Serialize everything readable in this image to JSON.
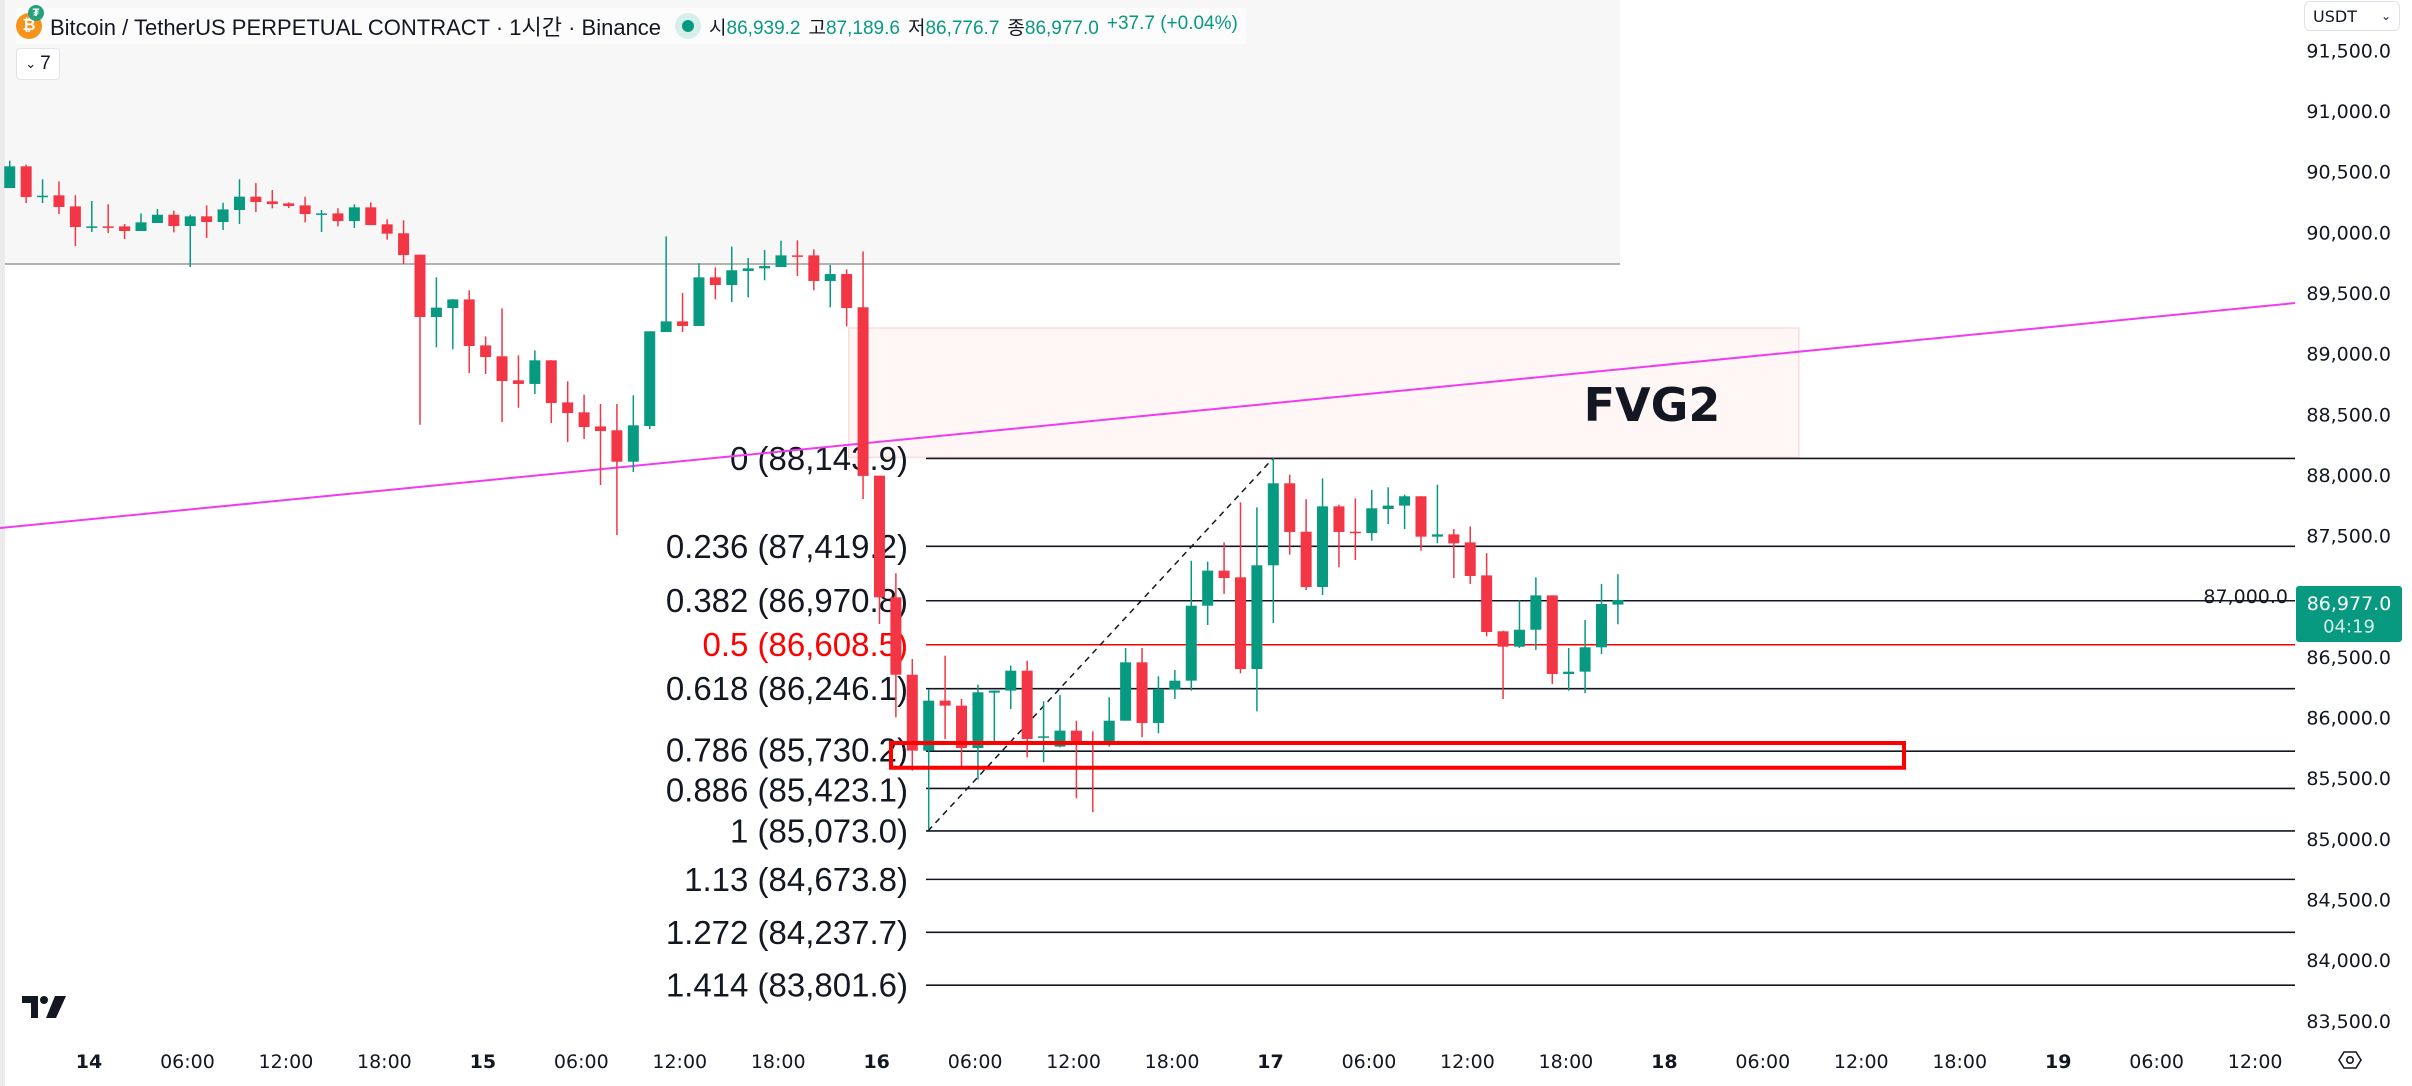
{
  "header": {
    "title": "Bitcoin / TetherUS PERPETUAL CONTRACT · 1시간 · Binance",
    "ohlc": {
      "open_label": "시",
      "open": "86,939.2",
      "high_label": "고",
      "high": "87,189.6",
      "low_label": "저",
      "low": "86,776.7",
      "close_label": "종",
      "close": "86,977.0",
      "change": "+37.7 (+0.04%)"
    },
    "indicator_toggle": "7"
  },
  "currency_select": "USDT",
  "last_price": {
    "value": "86,977.0",
    "countdown": "04:19"
  },
  "colors": {
    "up": "#089981",
    "down": "#f23645",
    "trendline": "#f03cf0",
    "fib_highlight": "#ff0000",
    "box": "#ff0000"
  },
  "drawings": {
    "fvg_label": "FVG2"
  },
  "fib_levels": [
    {
      "label": "0 (88,143.9)",
      "price": 88143.9,
      "highlight": false
    },
    {
      "label": "0.236 (87,419.2)",
      "price": 87419.2,
      "highlight": false
    },
    {
      "label": "0.382 (86,970.8)",
      "price": 86970.8,
      "highlight": false
    },
    {
      "label": "0.5 (86,608.5)",
      "price": 86608.5,
      "highlight": true
    },
    {
      "label": "0.618 (86,246.1)",
      "price": 86246.1,
      "highlight": false
    },
    {
      "label": "0.786 (85,730.2)",
      "price": 85730.2,
      "highlight": false
    },
    {
      "label": "0.886 (85,423.1)",
      "price": 85423.1,
      "highlight": false
    },
    {
      "label": "1 (85,073.0)",
      "price": 85073.0,
      "highlight": false
    },
    {
      "label": "1.13 (84,673.8)",
      "price": 84673.8,
      "highlight": false
    },
    {
      "label": "1.272 (84,237.7)",
      "price": 84237.7,
      "highlight": false
    },
    {
      "label": "1.414 (83,801.6)",
      "price": 83801.6,
      "highlight": false
    }
  ],
  "chart_data": {
    "type": "candlestick",
    "interval": "1h",
    "ohlc_order": [
      "open",
      "high",
      "low",
      "close"
    ],
    "y_ticks": [
      "91,500.0",
      "91,000.0",
      "90,500.0",
      "90,000.0",
      "89,500.0",
      "89,000.0",
      "88,500.0",
      "88,000.0",
      "87,500.0",
      "87,000.0",
      "86,500.0",
      "86,000.0",
      "85,500.0",
      "85,000.0",
      "84,500.0",
      "84,000.0",
      "83,500.0"
    ],
    "y_tick_values": [
      91500,
      91000,
      90500,
      90000,
      89500,
      89000,
      88500,
      88000,
      87500,
      87000,
      86500,
      86000,
      85500,
      85000,
      84500,
      84000,
      83500
    ],
    "x_ticks": [
      {
        "label": "14",
        "hour": 0,
        "day": true
      },
      {
        "label": "06:00",
        "hour": 6
      },
      {
        "label": "12:00",
        "hour": 12
      },
      {
        "label": "18:00",
        "hour": 18
      },
      {
        "label": "15",
        "hour": 24,
        "day": true
      },
      {
        "label": "06:00",
        "hour": 30
      },
      {
        "label": "12:00",
        "hour": 36
      },
      {
        "label": "18:00",
        "hour": 42
      },
      {
        "label": "16",
        "hour": 48,
        "day": true
      },
      {
        "label": "06:00",
        "hour": 54
      },
      {
        "label": "12:00",
        "hour": 60
      },
      {
        "label": "18:00",
        "hour": 66
      },
      {
        "label": "17",
        "hour": 72,
        "day": true
      },
      {
        "label": "06:00",
        "hour": 78
      },
      {
        "label": "12:00",
        "hour": 84
      },
      {
        "label": "18:00",
        "hour": 90
      },
      {
        "label": "18",
        "hour": 96,
        "day": true
      },
      {
        "label": "06:00",
        "hour": 102
      },
      {
        "label": "12:00",
        "hour": 108
      },
      {
        "label": "18:00",
        "hour": 114
      },
      {
        "label": "19",
        "hour": 120,
        "day": true
      },
      {
        "label": "06:00",
        "hour": 126
      },
      {
        "label": "12:00",
        "hour": 132
      }
    ],
    "candles": [
      [
        90373,
        90599,
        90373,
        90552
      ],
      [
        90552,
        90566,
        90250,
        90299
      ],
      [
        90299,
        90445,
        90250,
        90310
      ],
      [
        90313,
        90428,
        90159,
        90217
      ],
      [
        90222,
        90313,
        89895,
        90052
      ],
      [
        90052,
        90266,
        90011,
        90057
      ],
      [
        90057,
        90239,
        90002,
        90052
      ],
      [
        90057,
        90077,
        89953,
        90019
      ],
      [
        90019,
        90164,
        90019,
        90090
      ],
      [
        90085,
        90200,
        90085,
        90153
      ],
      [
        90153,
        90186,
        90008,
        90060
      ],
      [
        90060,
        90153,
        89722,
        90140
      ],
      [
        90140,
        90230,
        89961,
        90093
      ],
      [
        90093,
        90252,
        90027,
        90197
      ],
      [
        90192,
        90445,
        90077,
        90302
      ],
      [
        90302,
        90414,
        90175,
        90258
      ],
      [
        90263,
        90357,
        90206,
        90241
      ],
      [
        90247,
        90255,
        90208,
        90225
      ],
      [
        90230,
        90302,
        90090,
        90159
      ],
      [
        90159,
        90192,
        90011,
        90164
      ],
      [
        90164,
        90206,
        90057,
        90101
      ],
      [
        90101,
        90239,
        90044,
        90214
      ],
      [
        90214,
        90255,
        90068,
        90068
      ],
      [
        90074,
        90115,
        89947,
        89997
      ],
      [
        90000,
        90107,
        89747,
        89821
      ],
      [
        89824,
        89824,
        88422,
        89310
      ],
      [
        89310,
        89637,
        89060,
        89387
      ],
      [
        89384,
        89458,
        89043,
        89455
      ],
      [
        89455,
        89530,
        88848,
        89071
      ],
      [
        89076,
        89150,
        88840,
        88980
      ],
      [
        88986,
        89381,
        88444,
        88782
      ],
      [
        88788,
        88994,
        88562,
        88758
      ],
      [
        88758,
        89035,
        88675,
        88953
      ],
      [
        88953,
        88953,
        88436,
        88601
      ],
      [
        88606,
        88780,
        88279,
        88518
      ],
      [
        88524,
        88670,
        88304,
        88403
      ],
      [
        88408,
        88593,
        87925,
        88370
      ],
      [
        88376,
        88593,
        87513,
        88117
      ],
      [
        88117,
        88664,
        88032,
        88417
      ],
      [
        88411,
        89192,
        88386,
        89192
      ],
      [
        89186,
        89975,
        89186,
        89274
      ],
      [
        89274,
        89508,
        89186,
        89236
      ],
      [
        89236,
        89752,
        89236,
        89637
      ],
      [
        89637,
        89719,
        89455,
        89574
      ],
      [
        89574,
        89890,
        89433,
        89695
      ],
      [
        89689,
        89796,
        89472,
        89711
      ],
      [
        89711,
        89862,
        89612,
        89730
      ],
      [
        89722,
        89939,
        89722,
        89818
      ],
      [
        89818,
        89942,
        89648,
        89813
      ],
      [
        89818,
        89868,
        89530,
        89607
      ],
      [
        89607,
        89739,
        89390,
        89664
      ],
      [
        89664,
        89703,
        89233,
        89384
      ],
      [
        89390,
        89851,
        87810,
        88000
      ],
      [
        88002,
        88002,
        86779,
        86999
      ],
      [
        86999,
        87197,
        86010,
        86361
      ],
      [
        86361,
        86491,
        85570,
        85735
      ],
      [
        85735,
        86243,
        85089,
        86147
      ],
      [
        86147,
        86518,
        85831,
        86106
      ],
      [
        86106,
        86161,
        85584,
        85757
      ],
      [
        85757,
        86279,
        85496,
        86216
      ],
      [
        86213,
        86230,
        85790,
        86230
      ],
      [
        86230,
        86436,
        86078,
        86394
      ],
      [
        86394,
        86477,
        85680,
        85831
      ],
      [
        85845,
        86142,
        85639,
        85853
      ],
      [
        85768,
        86194,
        85762,
        85900
      ],
      [
        85900,
        85982,
        85342,
        85804
      ],
      [
        85812,
        85894,
        85227,
        85801
      ],
      [
        85801,
        86175,
        85768,
        85982
      ],
      [
        85982,
        86581,
        85982,
        86463
      ],
      [
        86463,
        86581,
        85845,
        85963
      ],
      [
        85963,
        86348,
        85878,
        86243
      ],
      [
        86238,
        86400,
        86161,
        86312
      ],
      [
        86312,
        87301,
        86230,
        86930
      ],
      [
        86930,
        87293,
        86771,
        87219
      ],
      [
        87219,
        87452,
        87027,
        87158
      ],
      [
        87164,
        87782,
        86372,
        86408
      ],
      [
        86408,
        87741,
        86059,
        87263
      ],
      [
        87263,
        88148,
        86787,
        87939
      ],
      [
        87939,
        88010,
        87351,
        87538
      ],
      [
        87540,
        87807,
        87059,
        87084
      ],
      [
        87084,
        87980,
        87018,
        87749
      ],
      [
        87749,
        87763,
        87246,
        87538
      ],
      [
        87540,
        87815,
        87307,
        87535
      ],
      [
        87529,
        87884,
        87466,
        87733
      ],
      [
        87727,
        87906,
        87603,
        87755
      ],
      [
        87755,
        87845,
        87562,
        87832
      ],
      [
        87832,
        87832,
        87384,
        87499
      ],
      [
        87499,
        87928,
        87444,
        87518
      ],
      [
        87518,
        87562,
        87158,
        87444
      ],
      [
        87452,
        87584,
        87109,
        87175
      ],
      [
        87180,
        87362,
        86677,
        86713
      ],
      [
        86719,
        86724,
        86161,
        86592
      ],
      [
        86592,
        86974,
        86581,
        86732
      ],
      [
        86732,
        87164,
        86565,
        87015
      ],
      [
        87015,
        87015,
        86285,
        86367
      ],
      [
        86367,
        86581,
        86230,
        86386
      ],
      [
        86386,
        86812,
        86208,
        86587
      ],
      [
        86587,
        87109,
        86532,
        86944
      ],
      [
        86939,
        87190,
        86777,
        86977
      ]
    ]
  }
}
